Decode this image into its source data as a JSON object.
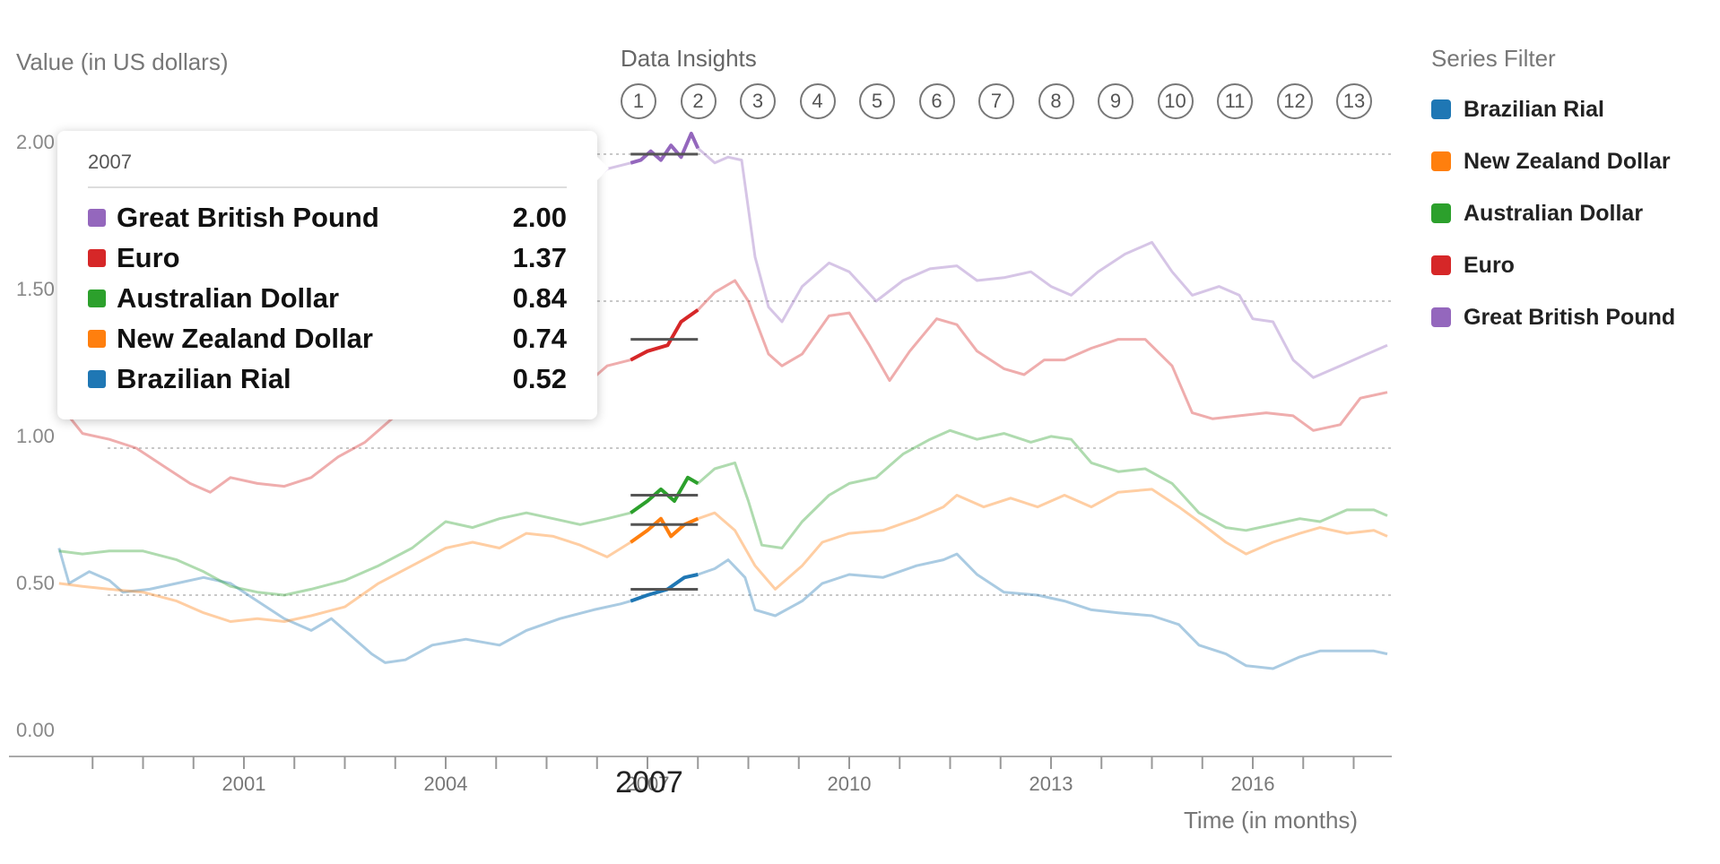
{
  "chart_data": {
    "type": "line",
    "ylabel": "Value (in US dollars)",
    "xlabel": "Time (in months)",
    "ylim": [
      0,
      2.0
    ],
    "xlim": [
      1998.25,
      2018.0
    ],
    "yticks": [
      0,
      0.5,
      1.0,
      1.5,
      2.0
    ],
    "ytick_labels": [
      "0.00",
      "0.50",
      "1.00",
      "1.50",
      "2.00"
    ],
    "xticks": [
      2001,
      2004,
      2007,
      2010,
      2013,
      2016
    ],
    "xtick_labels": [
      "2001",
      "2004",
      "2007",
      "2010",
      "2013",
      "2016"
    ],
    "grid": true,
    "highlight": {
      "label": "2007",
      "x_start": 2006.75,
      "x_end": 2007.75
    },
    "series": [
      {
        "name": "Brazilian Rial",
        "color": "#1f77b4",
        "reference": 0.52,
        "points": [
          [
            1998.25,
            0.66
          ],
          [
            1998.4,
            0.54
          ],
          [
            1998.7,
            0.58
          ],
          [
            1999.0,
            0.55
          ],
          [
            1999.2,
            0.51
          ],
          [
            1999.6,
            0.52
          ],
          [
            2000.0,
            0.54
          ],
          [
            2000.4,
            0.56
          ],
          [
            2000.8,
            0.54
          ],
          [
            2001.2,
            0.48
          ],
          [
            2001.6,
            0.42
          ],
          [
            2002.0,
            0.38
          ],
          [
            2002.3,
            0.42
          ],
          [
            2002.6,
            0.36
          ],
          [
            2002.9,
            0.3
          ],
          [
            2003.1,
            0.27
          ],
          [
            2003.4,
            0.28
          ],
          [
            2003.8,
            0.33
          ],
          [
            2004.3,
            0.35
          ],
          [
            2004.8,
            0.33
          ],
          [
            2005.2,
            0.38
          ],
          [
            2005.7,
            0.42
          ],
          [
            2006.2,
            0.45
          ],
          [
            2006.6,
            0.47
          ],
          [
            2006.75,
            0.48
          ],
          [
            2007.0,
            0.5
          ],
          [
            2007.3,
            0.52
          ],
          [
            2007.55,
            0.56
          ],
          [
            2007.75,
            0.57
          ],
          [
            2008.0,
            0.59
          ],
          [
            2008.2,
            0.62
          ],
          [
            2008.45,
            0.56
          ],
          [
            2008.6,
            0.45
          ],
          [
            2008.9,
            0.43
          ],
          [
            2009.3,
            0.48
          ],
          [
            2009.6,
            0.54
          ],
          [
            2010.0,
            0.57
          ],
          [
            2010.5,
            0.56
          ],
          [
            2011.0,
            0.6
          ],
          [
            2011.4,
            0.62
          ],
          [
            2011.6,
            0.64
          ],
          [
            2011.9,
            0.57
          ],
          [
            2012.3,
            0.51
          ],
          [
            2012.8,
            0.5
          ],
          [
            2013.2,
            0.48
          ],
          [
            2013.6,
            0.45
          ],
          [
            2014.0,
            0.44
          ],
          [
            2014.5,
            0.43
          ],
          [
            2014.9,
            0.4
          ],
          [
            2015.2,
            0.33
          ],
          [
            2015.6,
            0.3
          ],
          [
            2015.9,
            0.26
          ],
          [
            2016.3,
            0.25
          ],
          [
            2016.7,
            0.29
          ],
          [
            2017.0,
            0.31
          ],
          [
            2017.4,
            0.31
          ],
          [
            2017.8,
            0.31
          ],
          [
            2018.0,
            0.3
          ]
        ]
      },
      {
        "name": "New Zealand Dollar",
        "color": "#ff7f0e",
        "reference": 0.74,
        "points": [
          [
            1998.25,
            0.54
          ],
          [
            1998.6,
            0.53
          ],
          [
            1999.0,
            0.52
          ],
          [
            1999.5,
            0.51
          ],
          [
            2000.0,
            0.48
          ],
          [
            2000.4,
            0.44
          ],
          [
            2000.8,
            0.41
          ],
          [
            2001.2,
            0.42
          ],
          [
            2001.6,
            0.41
          ],
          [
            2002.0,
            0.43
          ],
          [
            2002.5,
            0.46
          ],
          [
            2003.0,
            0.54
          ],
          [
            2003.5,
            0.6
          ],
          [
            2004.0,
            0.66
          ],
          [
            2004.4,
            0.68
          ],
          [
            2004.8,
            0.66
          ],
          [
            2005.2,
            0.71
          ],
          [
            2005.6,
            0.7
          ],
          [
            2006.0,
            0.67
          ],
          [
            2006.4,
            0.63
          ],
          [
            2006.75,
            0.68
          ],
          [
            2007.0,
            0.72
          ],
          [
            2007.2,
            0.76
          ],
          [
            2007.35,
            0.7
          ],
          [
            2007.55,
            0.74
          ],
          [
            2007.75,
            0.76
          ],
          [
            2008.0,
            0.78
          ],
          [
            2008.3,
            0.72
          ],
          [
            2008.6,
            0.6
          ],
          [
            2008.9,
            0.52
          ],
          [
            2009.3,
            0.6
          ],
          [
            2009.6,
            0.68
          ],
          [
            2010.0,
            0.71
          ],
          [
            2010.5,
            0.72
          ],
          [
            2011.0,
            0.76
          ],
          [
            2011.4,
            0.8
          ],
          [
            2011.6,
            0.84
          ],
          [
            2012.0,
            0.8
          ],
          [
            2012.4,
            0.83
          ],
          [
            2012.8,
            0.8
          ],
          [
            2013.2,
            0.84
          ],
          [
            2013.6,
            0.8
          ],
          [
            2014.0,
            0.85
          ],
          [
            2014.5,
            0.86
          ],
          [
            2014.9,
            0.8
          ],
          [
            2015.2,
            0.75
          ],
          [
            2015.6,
            0.68
          ],
          [
            2015.9,
            0.64
          ],
          [
            2016.3,
            0.68
          ],
          [
            2016.7,
            0.71
          ],
          [
            2017.0,
            0.73
          ],
          [
            2017.4,
            0.71
          ],
          [
            2017.8,
            0.72
          ],
          [
            2018.0,
            0.7
          ]
        ]
      },
      {
        "name": "Australian Dollar",
        "color": "#2ca02c",
        "reference": 0.84,
        "points": [
          [
            1998.25,
            0.65
          ],
          [
            1998.6,
            0.64
          ],
          [
            1999.0,
            0.65
          ],
          [
            1999.5,
            0.65
          ],
          [
            2000.0,
            0.62
          ],
          [
            2000.4,
            0.58
          ],
          [
            2000.8,
            0.53
          ],
          [
            2001.2,
            0.51
          ],
          [
            2001.6,
            0.5
          ],
          [
            2002.0,
            0.52
          ],
          [
            2002.5,
            0.55
          ],
          [
            2003.0,
            0.6
          ],
          [
            2003.5,
            0.66
          ],
          [
            2004.0,
            0.75
          ],
          [
            2004.4,
            0.73
          ],
          [
            2004.8,
            0.76
          ],
          [
            2005.2,
            0.78
          ],
          [
            2005.6,
            0.76
          ],
          [
            2006.0,
            0.74
          ],
          [
            2006.4,
            0.76
          ],
          [
            2006.75,
            0.78
          ],
          [
            2007.0,
            0.82
          ],
          [
            2007.2,
            0.86
          ],
          [
            2007.4,
            0.82
          ],
          [
            2007.6,
            0.9
          ],
          [
            2007.75,
            0.88
          ],
          [
            2008.0,
            0.93
          ],
          [
            2008.3,
            0.95
          ],
          [
            2008.5,
            0.82
          ],
          [
            2008.7,
            0.67
          ],
          [
            2009.0,
            0.66
          ],
          [
            2009.3,
            0.75
          ],
          [
            2009.7,
            0.84
          ],
          [
            2010.0,
            0.88
          ],
          [
            2010.4,
            0.9
          ],
          [
            2010.8,
            0.98
          ],
          [
            2011.2,
            1.03
          ],
          [
            2011.5,
            1.06
          ],
          [
            2011.9,
            1.03
          ],
          [
            2012.3,
            1.05
          ],
          [
            2012.7,
            1.02
          ],
          [
            2013.0,
            1.04
          ],
          [
            2013.3,
            1.03
          ],
          [
            2013.6,
            0.95
          ],
          [
            2014.0,
            0.92
          ],
          [
            2014.4,
            0.93
          ],
          [
            2014.8,
            0.88
          ],
          [
            2015.2,
            0.78
          ],
          [
            2015.6,
            0.73
          ],
          [
            2015.9,
            0.72
          ],
          [
            2016.3,
            0.74
          ],
          [
            2016.7,
            0.76
          ],
          [
            2017.0,
            0.75
          ],
          [
            2017.4,
            0.79
          ],
          [
            2017.8,
            0.79
          ],
          [
            2018.0,
            0.77
          ]
        ]
      },
      {
        "name": "Euro",
        "color": "#d62728",
        "reference": 1.37,
        "points": [
          [
            1998.25,
            1.15
          ],
          [
            1998.6,
            1.05
          ],
          [
            1999.0,
            1.03
          ],
          [
            1999.4,
            1.0
          ],
          [
            1999.8,
            0.94
          ],
          [
            2000.2,
            0.88
          ],
          [
            2000.5,
            0.85
          ],
          [
            2000.8,
            0.9
          ],
          [
            2001.2,
            0.88
          ],
          [
            2001.6,
            0.87
          ],
          [
            2002.0,
            0.9
          ],
          [
            2002.4,
            0.97
          ],
          [
            2002.8,
            1.02
          ],
          [
            2003.2,
            1.1
          ],
          [
            2003.6,
            1.15
          ],
          [
            2004.0,
            1.22
          ],
          [
            2004.4,
            1.26
          ],
          [
            2004.8,
            1.33
          ],
          [
            2005.2,
            1.28
          ],
          [
            2005.6,
            1.22
          ],
          [
            2006.0,
            1.2
          ],
          [
            2006.4,
            1.28
          ],
          [
            2006.75,
            1.3
          ],
          [
            2007.0,
            1.33
          ],
          [
            2007.3,
            1.35
          ],
          [
            2007.5,
            1.43
          ],
          [
            2007.75,
            1.47
          ],
          [
            2008.0,
            1.53
          ],
          [
            2008.3,
            1.57
          ],
          [
            2008.5,
            1.5
          ],
          [
            2008.8,
            1.32
          ],
          [
            2009.0,
            1.28
          ],
          [
            2009.3,
            1.32
          ],
          [
            2009.7,
            1.45
          ],
          [
            2010.0,
            1.46
          ],
          [
            2010.3,
            1.35
          ],
          [
            2010.6,
            1.23
          ],
          [
            2010.9,
            1.33
          ],
          [
            2011.3,
            1.44
          ],
          [
            2011.6,
            1.42
          ],
          [
            2011.9,
            1.33
          ],
          [
            2012.3,
            1.27
          ],
          [
            2012.6,
            1.25
          ],
          [
            2012.9,
            1.3
          ],
          [
            2013.2,
            1.3
          ],
          [
            2013.6,
            1.34
          ],
          [
            2014.0,
            1.37
          ],
          [
            2014.4,
            1.37
          ],
          [
            2014.8,
            1.28
          ],
          [
            2015.1,
            1.12
          ],
          [
            2015.4,
            1.1
          ],
          [
            2015.8,
            1.11
          ],
          [
            2016.2,
            1.12
          ],
          [
            2016.6,
            1.11
          ],
          [
            2016.9,
            1.06
          ],
          [
            2017.3,
            1.08
          ],
          [
            2017.6,
            1.17
          ],
          [
            2018.0,
            1.19
          ]
        ]
      },
      {
        "name": "Great British Pound",
        "color": "#9467bd",
        "reference": 2.0,
        "points": [
          [
            2006.0,
            1.87
          ],
          [
            2006.4,
            1.95
          ],
          [
            2006.75,
            1.97
          ],
          [
            2006.9,
            1.98
          ],
          [
            2007.05,
            2.01
          ],
          [
            2007.2,
            1.98
          ],
          [
            2007.35,
            2.03
          ],
          [
            2007.5,
            1.99
          ],
          [
            2007.65,
            2.07
          ],
          [
            2007.75,
            2.02
          ],
          [
            2008.0,
            1.97
          ],
          [
            2008.2,
            1.99
          ],
          [
            2008.4,
            1.98
          ],
          [
            2008.6,
            1.65
          ],
          [
            2008.8,
            1.48
          ],
          [
            2009.0,
            1.43
          ],
          [
            2009.3,
            1.55
          ],
          [
            2009.7,
            1.63
          ],
          [
            2010.0,
            1.6
          ],
          [
            2010.4,
            1.5
          ],
          [
            2010.8,
            1.57
          ],
          [
            2011.2,
            1.61
          ],
          [
            2011.6,
            1.62
          ],
          [
            2011.9,
            1.57
          ],
          [
            2012.3,
            1.58
          ],
          [
            2012.7,
            1.6
          ],
          [
            2013.0,
            1.55
          ],
          [
            2013.3,
            1.52
          ],
          [
            2013.7,
            1.6
          ],
          [
            2014.1,
            1.66
          ],
          [
            2014.5,
            1.7
          ],
          [
            2014.8,
            1.6
          ],
          [
            2015.1,
            1.52
          ],
          [
            2015.5,
            1.55
          ],
          [
            2015.8,
            1.52
          ],
          [
            2016.0,
            1.44
          ],
          [
            2016.3,
            1.43
          ],
          [
            2016.6,
            1.3
          ],
          [
            2016.9,
            1.24
          ],
          [
            2017.3,
            1.28
          ],
          [
            2017.7,
            1.32
          ],
          [
            2018.0,
            1.35
          ]
        ]
      }
    ]
  },
  "insights": {
    "title": "Data Insights",
    "buttons": [
      "1",
      "2",
      "3",
      "4",
      "5",
      "6",
      "7",
      "8",
      "9",
      "10",
      "11",
      "12",
      "13"
    ]
  },
  "filter": {
    "title": "Series Filter",
    "items": [
      {
        "label": "Brazilian Rial",
        "color": "#1f77b4"
      },
      {
        "label": "New Zealand Dollar",
        "color": "#ff7f0e"
      },
      {
        "label": "Australian Dollar",
        "color": "#2ca02c"
      },
      {
        "label": "Euro",
        "color": "#d62728"
      },
      {
        "label": "Great British Pound",
        "color": "#9467bd"
      }
    ]
  },
  "tooltip": {
    "title": "2007",
    "rows": [
      {
        "name": "Great British Pound",
        "value": "2.00",
        "color": "#9467bd"
      },
      {
        "name": "Euro",
        "value": "1.37",
        "color": "#d62728"
      },
      {
        "name": "Australian Dollar",
        "value": "0.84",
        "color": "#2ca02c"
      },
      {
        "name": "New Zealand Dollar",
        "value": "0.74",
        "color": "#ff7f0e"
      },
      {
        "name": "Brazilian Rial",
        "value": "0.52",
        "color": "#1f77b4"
      }
    ]
  }
}
